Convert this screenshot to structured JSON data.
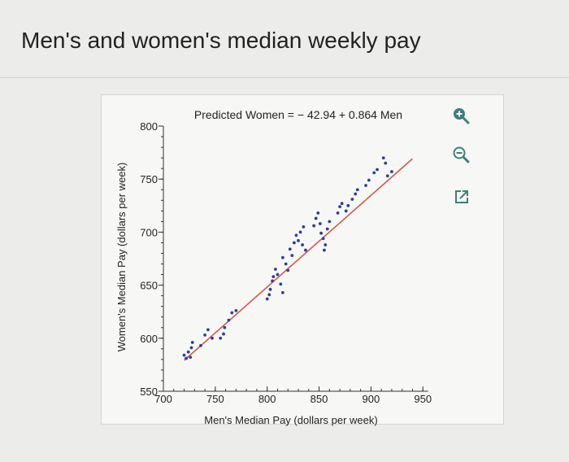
{
  "page": {
    "title": "Men's and women's median weekly pay"
  },
  "colors": {
    "points": "#2f3f9a",
    "fit_line": "#d9574e",
    "icons": "#3f7f7c"
  },
  "icons": [
    "zoom-in-icon",
    "zoom-out-icon",
    "external-link-icon"
  ],
  "chart_data": {
    "type": "scatter",
    "title": "Predicted Women  =  − 42.94 + 0.864 Men",
    "xlabel": "Men's Median Pay (dollars per week)",
    "ylabel": "Women's Median Pay (dollars per week)",
    "xlim": [
      700,
      960
    ],
    "ylim": [
      550,
      800
    ],
    "xticks": [
      700,
      750,
      800,
      850,
      900,
      950
    ],
    "yticks": [
      550,
      600,
      650,
      700,
      750,
      800
    ],
    "xticklabels": [
      "700",
      "750",
      "800",
      "850",
      "900",
      "950"
    ],
    "yticklabels": [
      "550",
      "600",
      "650",
      "700",
      "750",
      "800"
    ],
    "fit_line": {
      "intercept": -42.94,
      "slope": 0.864,
      "x_range": [
        720,
        940
      ]
    },
    "points": [
      [
        720,
        584
      ],
      [
        722,
        581
      ],
      [
        724,
        587
      ],
      [
        726,
        582
      ],
      [
        727,
        591
      ],
      [
        728,
        596
      ],
      [
        736,
        593
      ],
      [
        740,
        603
      ],
      [
        743,
        608
      ],
      [
        747,
        600
      ],
      [
        755,
        600
      ],
      [
        758,
        604
      ],
      [
        759,
        610
      ],
      [
        763,
        617
      ],
      [
        766,
        624
      ],
      [
        770,
        626
      ],
      [
        800,
        637
      ],
      [
        802,
        641
      ],
      [
        803,
        646
      ],
      [
        805,
        654
      ],
      [
        806,
        658
      ],
      [
        808,
        665
      ],
      [
        810,
        660
      ],
      [
        813,
        651
      ],
      [
        815,
        643
      ],
      [
        815,
        676
      ],
      [
        818,
        670
      ],
      [
        820,
        664
      ],
      [
        822,
        684
      ],
      [
        824,
        678
      ],
      [
        826,
        690
      ],
      [
        828,
        697
      ],
      [
        830,
        692
      ],
      [
        832,
        700
      ],
      [
        834,
        688
      ],
      [
        835,
        705
      ],
      [
        837,
        683
      ],
      [
        845,
        706
      ],
      [
        847,
        713
      ],
      [
        849,
        718
      ],
      [
        851,
        708
      ],
      [
        852,
        699
      ],
      [
        854,
        694
      ],
      [
        855,
        683
      ],
      [
        856,
        688
      ],
      [
        858,
        703
      ],
      [
        860,
        710
      ],
      [
        868,
        718
      ],
      [
        870,
        724
      ],
      [
        872,
        727
      ],
      [
        876,
        720
      ],
      [
        878,
        725
      ],
      [
        882,
        731
      ],
      [
        885,
        736
      ],
      [
        887,
        740
      ],
      [
        895,
        744
      ],
      [
        898,
        749
      ],
      [
        903,
        756
      ],
      [
        906,
        759
      ],
      [
        912,
        770
      ],
      [
        914,
        765
      ],
      [
        916,
        753
      ],
      [
        920,
        757
      ]
    ]
  }
}
